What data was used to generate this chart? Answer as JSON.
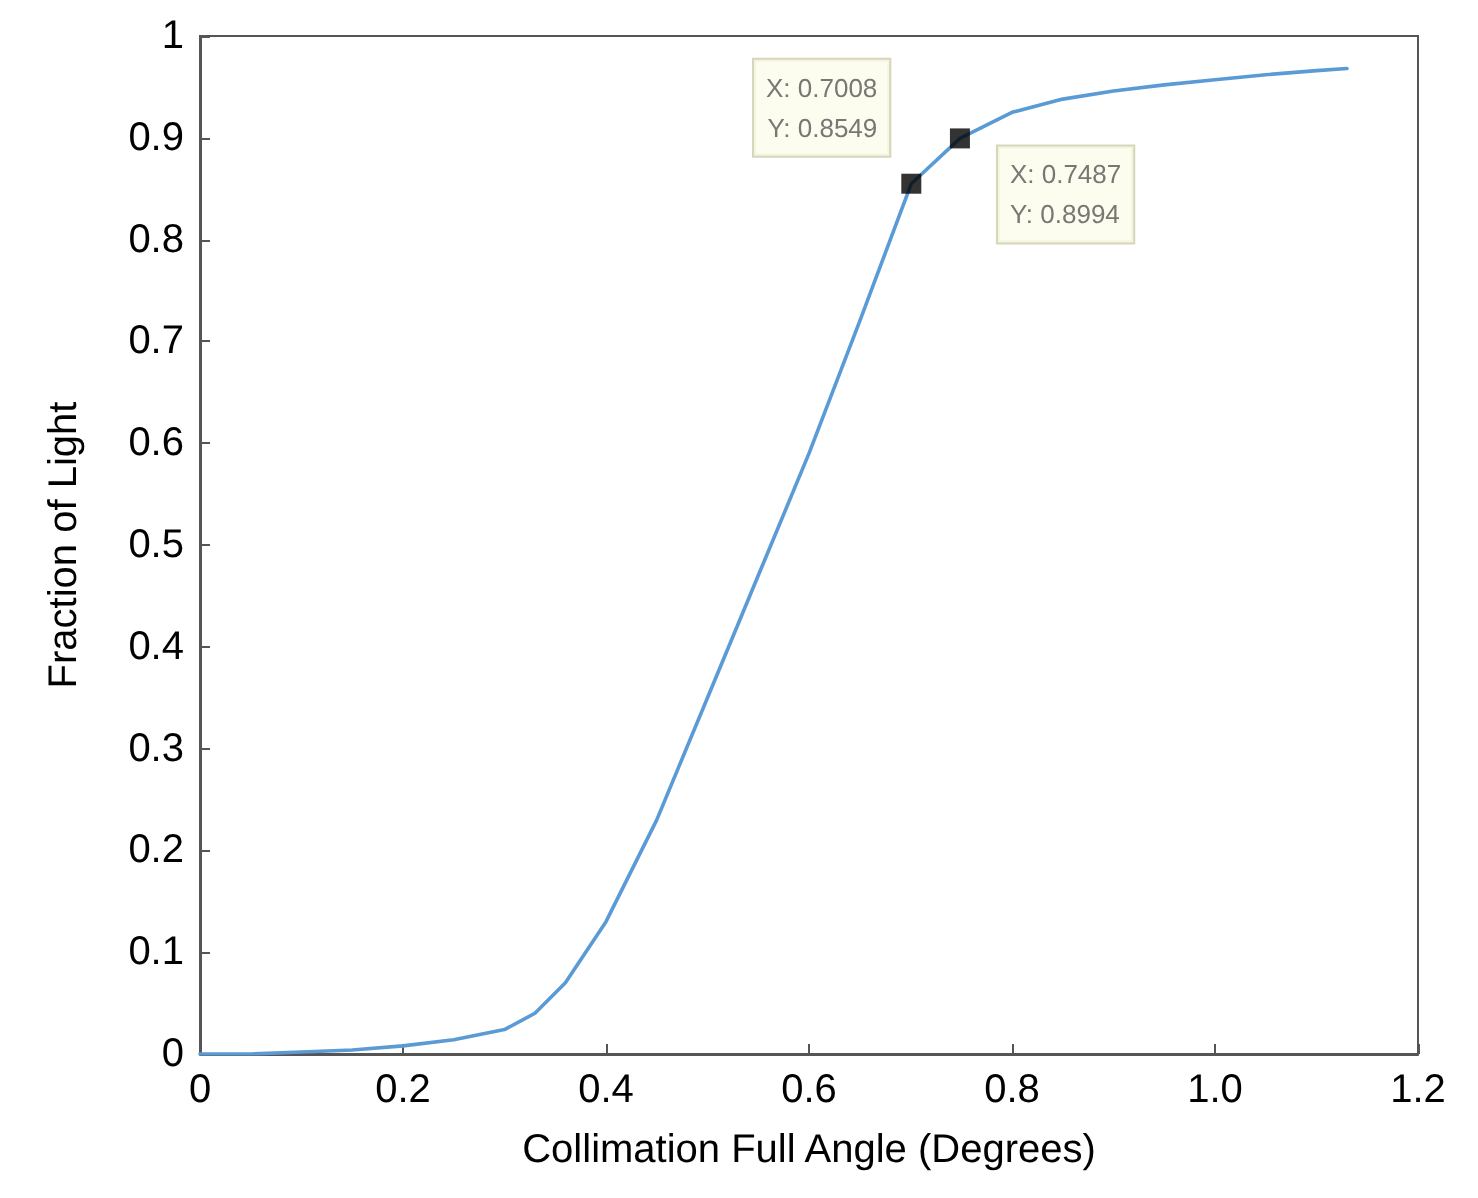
{
  "chart_data": {
    "type": "line",
    "xlabel": "Collimation Full Angle (Degrees)",
    "ylabel": "Fraction of Light",
    "xlim": [
      0,
      1.2
    ],
    "ylim": [
      0,
      1
    ],
    "xticks": [
      0,
      {
        "value": 0.2,
        "label": "0.2"
      },
      {
        "value": 0.4,
        "label": "0.4"
      },
      {
        "value": 0.6,
        "label": "0.6"
      },
      {
        "value": 0.8,
        "label": "0.8"
      },
      {
        "value": 1,
        "label": "1.0"
      },
      {
        "value": 1.2,
        "label": "1.2"
      }
    ],
    "yticks": [
      0,
      0.1,
      0.2,
      0.3,
      0.4,
      0.5,
      0.6,
      0.7,
      0.8,
      0.9,
      1
    ],
    "grid": false,
    "series": [
      {
        "color": "#5b9bd5",
        "marker": "none",
        "x": [
          0,
          0.05,
          0.1,
          0.15,
          0.2,
          0.25,
          0.3,
          0.33,
          0.36,
          0.4,
          0.45,
          0.5,
          0.55,
          0.6,
          0.65,
          0.7008,
          0.7487,
          0.8,
          0.85,
          0.9,
          0.95,
          1,
          1.05,
          1.1,
          1.13
        ],
        "values": [
          0,
          0,
          0.002,
          0.004,
          0.008,
          0.014,
          0.024,
          0.04,
          0.07,
          0.13,
          0.23,
          0.35,
          0.47,
          0.59,
          0.72,
          0.8549,
          0.8994,
          0.925,
          0.938,
          0.946,
          0.952,
          0.957,
          0.962,
          0.966,
          0.968
        ]
      },
      {
        "type": "scatter",
        "color": "#000000",
        "marker": "square",
        "x": [
          0.7008,
          0.7487
        ],
        "values": [
          0.8549,
          0.8994
        ]
      }
    ],
    "annotations": [
      {
        "text": "X: 0.7008\nY: 0.8549",
        "x": 0.7008,
        "y": 0.8549
      },
      {
        "text": "X: 0.7487\nY: 0.8994",
        "x": 0.7487,
        "y": 0.8994
      }
    ]
  }
}
